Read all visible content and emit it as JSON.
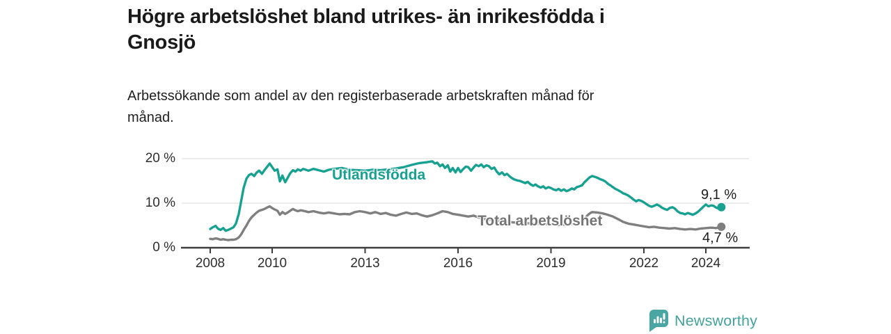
{
  "header": {
    "title_lines": [
      "Högre arbetslöshet bland utrikes- än inrikesfödda i",
      "Gnosjö"
    ],
    "subtitle_lines": [
      "Arbetssökande som andel av den registerbaserade arbetskraften månad för",
      "månad."
    ]
  },
  "footer": {
    "brand": "Newsworthy",
    "brand_color": "#44a29e",
    "icon": "bar-chart-speech-bubble"
  },
  "chart_data": {
    "type": "line",
    "title": "Högre arbetslöshet bland utrikes- än inrikesfödda i Gnosjö",
    "subtitle": "Arbetssökande som andel av den registerbaserade arbetskraften månad för månad.",
    "xlabel": "",
    "ylabel": "",
    "x_unit": "year-month",
    "ylim": [
      0,
      21
    ],
    "xlim": [
      2007.1,
      2025.4
    ],
    "grid": "horizontal",
    "legend_position": "inline-labels",
    "style": {
      "grid_color": "#d9d9d9",
      "axis_color": "#3d3d3d",
      "background": "#ffffff"
    },
    "x_ticks": [
      {
        "value": 2008,
        "label": "2008"
      },
      {
        "value": 2010,
        "label": "2010"
      },
      {
        "value": 2013,
        "label": "2013"
      },
      {
        "value": 2016,
        "label": "2016"
      },
      {
        "value": 2019,
        "label": "2019"
      },
      {
        "value": 2022,
        "label": "2022"
      },
      {
        "value": 2024,
        "label": "2024"
      }
    ],
    "y_ticks": [
      {
        "value": 0,
        "label": "0 %"
      },
      {
        "value": 10,
        "label": "10 %"
      },
      {
        "value": 20,
        "label": "20 %"
      }
    ],
    "series": [
      {
        "name": "Utlandsfödda",
        "color": "#16a191",
        "end_value": 9.1,
        "end_label": "9,1 %",
        "points": [
          [
            2008.0,
            4.2
          ],
          [
            2008.08,
            4.6
          ],
          [
            2008.17,
            4.9
          ],
          [
            2008.25,
            4.3
          ],
          [
            2008.33,
            4.0
          ],
          [
            2008.42,
            4.4
          ],
          [
            2008.5,
            3.8
          ],
          [
            2008.58,
            4.0
          ],
          [
            2008.67,
            4.3
          ],
          [
            2008.75,
            4.6
          ],
          [
            2008.83,
            5.4
          ],
          [
            2008.92,
            7.5
          ],
          [
            2009.0,
            10.5
          ],
          [
            2009.08,
            13.5
          ],
          [
            2009.17,
            15.5
          ],
          [
            2009.25,
            16.3
          ],
          [
            2009.33,
            16.6
          ],
          [
            2009.42,
            16.1
          ],
          [
            2009.5,
            16.9
          ],
          [
            2009.58,
            17.3
          ],
          [
            2009.67,
            16.6
          ],
          [
            2009.75,
            17.4
          ],
          [
            2009.83,
            18.1
          ],
          [
            2009.92,
            18.9
          ],
          [
            2010.0,
            18.1
          ],
          [
            2010.08,
            17.3
          ],
          [
            2010.17,
            17.6
          ],
          [
            2010.25,
            14.9
          ],
          [
            2010.33,
            16.2
          ],
          [
            2010.42,
            14.7
          ],
          [
            2010.5,
            15.7
          ],
          [
            2010.58,
            16.7
          ],
          [
            2010.67,
            17.4
          ],
          [
            2010.75,
            17.1
          ],
          [
            2010.83,
            17.6
          ],
          [
            2010.92,
            17.3
          ],
          [
            2011.0,
            17.7
          ],
          [
            2011.17,
            17.3
          ],
          [
            2011.33,
            17.7
          ],
          [
            2011.5,
            17.4
          ],
          [
            2011.67,
            17.1
          ],
          [
            2011.83,
            17.5
          ],
          [
            2012.0,
            17.7
          ],
          [
            2012.25,
            17.9
          ],
          [
            2012.5,
            17.5
          ],
          [
            2012.75,
            17.4
          ],
          [
            2013.0,
            17.3
          ],
          [
            2013.25,
            17.5
          ],
          [
            2013.5,
            17.4
          ],
          [
            2013.75,
            17.6
          ],
          [
            2014.0,
            17.8
          ],
          [
            2014.25,
            18.1
          ],
          [
            2014.5,
            18.6
          ],
          [
            2014.75,
            19.0
          ],
          [
            2015.0,
            19.2
          ],
          [
            2015.17,
            19.4
          ],
          [
            2015.25,
            18.9
          ],
          [
            2015.33,
            19.1
          ],
          [
            2015.42,
            18.3
          ],
          [
            2015.5,
            18.7
          ],
          [
            2015.58,
            17.9
          ],
          [
            2015.67,
            18.5
          ],
          [
            2015.75,
            17.1
          ],
          [
            2015.83,
            17.9
          ],
          [
            2015.92,
            16.9
          ],
          [
            2016.0,
            17.9
          ],
          [
            2016.08,
            17.0
          ],
          [
            2016.17,
            17.7
          ],
          [
            2016.25,
            18.2
          ],
          [
            2016.33,
            18.1
          ],
          [
            2016.42,
            17.3
          ],
          [
            2016.5,
            18.0
          ],
          [
            2016.58,
            18.6
          ],
          [
            2016.67,
            18.3
          ],
          [
            2016.75,
            18.7
          ],
          [
            2016.83,
            18.1
          ],
          [
            2016.92,
            18.5
          ],
          [
            2017.0,
            18.3
          ],
          [
            2017.08,
            17.7
          ],
          [
            2017.17,
            18.0
          ],
          [
            2017.25,
            17.1
          ],
          [
            2017.33,
            16.5
          ],
          [
            2017.42,
            16.9
          ],
          [
            2017.5,
            16.3
          ],
          [
            2017.58,
            16.6
          ],
          [
            2017.67,
            16.0
          ],
          [
            2017.75,
            15.6
          ],
          [
            2017.83,
            15.3
          ],
          [
            2017.92,
            15.1
          ],
          [
            2018.0,
            15.0
          ],
          [
            2018.17,
            14.5
          ],
          [
            2018.25,
            14.8
          ],
          [
            2018.33,
            14.3
          ],
          [
            2018.42,
            13.9
          ],
          [
            2018.5,
            14.2
          ],
          [
            2018.58,
            13.8
          ],
          [
            2018.67,
            13.5
          ],
          [
            2018.75,
            13.8
          ],
          [
            2018.83,
            13.3
          ],
          [
            2018.92,
            13.6
          ],
          [
            2019.0,
            13.4
          ],
          [
            2019.08,
            13.1
          ],
          [
            2019.17,
            12.9
          ],
          [
            2019.25,
            13.2
          ],
          [
            2019.33,
            12.8
          ],
          [
            2019.42,
            13.1
          ],
          [
            2019.5,
            12.7
          ],
          [
            2019.58,
            12.9
          ],
          [
            2019.67,
            13.3
          ],
          [
            2019.75,
            13.1
          ],
          [
            2019.83,
            13.6
          ],
          [
            2019.92,
            13.8
          ],
          [
            2020.0,
            14.0
          ],
          [
            2020.08,
            14.7
          ],
          [
            2020.17,
            15.3
          ],
          [
            2020.25,
            15.8
          ],
          [
            2020.33,
            16.1
          ],
          [
            2020.42,
            15.9
          ],
          [
            2020.5,
            15.7
          ],
          [
            2020.58,
            15.4
          ],
          [
            2020.67,
            15.2
          ],
          [
            2020.75,
            14.9
          ],
          [
            2020.83,
            14.4
          ],
          [
            2020.92,
            14.0
          ],
          [
            2021.0,
            13.6
          ],
          [
            2021.08,
            13.2
          ],
          [
            2021.17,
            12.9
          ],
          [
            2021.25,
            12.6
          ],
          [
            2021.33,
            12.2
          ],
          [
            2021.42,
            12.0
          ],
          [
            2021.5,
            11.7
          ],
          [
            2021.58,
            11.3
          ],
          [
            2021.67,
            10.8
          ],
          [
            2021.75,
            10.4
          ],
          [
            2021.83,
            10.7
          ],
          [
            2021.92,
            10.5
          ],
          [
            2022.0,
            10.2
          ],
          [
            2022.08,
            9.8
          ],
          [
            2022.17,
            9.4
          ],
          [
            2022.25,
            9.2
          ],
          [
            2022.33,
            9.4
          ],
          [
            2022.42,
            9.7
          ],
          [
            2022.5,
            9.4
          ],
          [
            2022.58,
            9.0
          ],
          [
            2022.67,
            8.7
          ],
          [
            2022.75,
            8.5
          ],
          [
            2022.83,
            8.9
          ],
          [
            2022.92,
            9.1
          ],
          [
            2023.0,
            8.8
          ],
          [
            2023.08,
            8.2
          ],
          [
            2023.17,
            7.8
          ],
          [
            2023.25,
            7.7
          ],
          [
            2023.33,
            7.5
          ],
          [
            2023.42,
            7.8
          ],
          [
            2023.5,
            7.6
          ],
          [
            2023.58,
            7.4
          ],
          [
            2023.67,
            7.7
          ],
          [
            2023.75,
            8.1
          ],
          [
            2023.83,
            8.6
          ],
          [
            2023.92,
            9.2
          ],
          [
            2024.0,
            9.7
          ],
          [
            2024.08,
            9.3
          ],
          [
            2024.17,
            9.5
          ],
          [
            2024.25,
            9.4
          ],
          [
            2024.33,
            9.0
          ],
          [
            2024.42,
            8.8
          ],
          [
            2024.5,
            9.1
          ]
        ]
      },
      {
        "name": "Total arbetslöshet",
        "color": "#7f7f7f",
        "end_value": 4.7,
        "end_label": "4,7 %",
        "points": [
          [
            2008.0,
            2.0
          ],
          [
            2008.08,
            1.9
          ],
          [
            2008.17,
            2.1
          ],
          [
            2008.25,
            2.0
          ],
          [
            2008.33,
            1.8
          ],
          [
            2008.42,
            1.9
          ],
          [
            2008.5,
            1.8
          ],
          [
            2008.58,
            1.7
          ],
          [
            2008.67,
            1.8
          ],
          [
            2008.75,
            1.8
          ],
          [
            2008.83,
            1.9
          ],
          [
            2008.92,
            2.3
          ],
          [
            2009.0,
            3.0
          ],
          [
            2009.08,
            4.0
          ],
          [
            2009.17,
            5.0
          ],
          [
            2009.25,
            6.0
          ],
          [
            2009.33,
            6.8
          ],
          [
            2009.42,
            7.4
          ],
          [
            2009.5,
            7.9
          ],
          [
            2009.58,
            8.3
          ],
          [
            2009.67,
            8.5
          ],
          [
            2009.75,
            8.7
          ],
          [
            2009.83,
            9.0
          ],
          [
            2009.92,
            9.3
          ],
          [
            2010.0,
            8.9
          ],
          [
            2010.08,
            8.6
          ],
          [
            2010.17,
            8.3
          ],
          [
            2010.25,
            7.4
          ],
          [
            2010.33,
            8.0
          ],
          [
            2010.42,
            7.6
          ],
          [
            2010.5,
            7.9
          ],
          [
            2010.58,
            8.3
          ],
          [
            2010.67,
            8.7
          ],
          [
            2010.75,
            8.4
          ],
          [
            2010.83,
            8.2
          ],
          [
            2010.92,
            8.4
          ],
          [
            2011.0,
            8.3
          ],
          [
            2011.17,
            8.0
          ],
          [
            2011.33,
            8.2
          ],
          [
            2011.5,
            7.9
          ],
          [
            2011.67,
            7.7
          ],
          [
            2011.83,
            7.9
          ],
          [
            2012.0,
            7.7
          ],
          [
            2012.17,
            7.5
          ],
          [
            2012.33,
            7.6
          ],
          [
            2012.5,
            7.5
          ],
          [
            2012.67,
            8.0
          ],
          [
            2012.83,
            8.2
          ],
          [
            2013.0,
            8.0
          ],
          [
            2013.17,
            7.7
          ],
          [
            2013.33,
            8.0
          ],
          [
            2013.5,
            7.6
          ],
          [
            2013.67,
            7.8
          ],
          [
            2013.83,
            7.4
          ],
          [
            2014.0,
            7.2
          ],
          [
            2014.17,
            7.6
          ],
          [
            2014.33,
            7.9
          ],
          [
            2014.5,
            7.6
          ],
          [
            2014.67,
            7.7
          ],
          [
            2014.83,
            7.3
          ],
          [
            2015.0,
            7.0
          ],
          [
            2015.17,
            7.3
          ],
          [
            2015.33,
            7.7
          ],
          [
            2015.5,
            8.2
          ],
          [
            2015.67,
            8.0
          ],
          [
            2015.83,
            7.6
          ],
          [
            2016.0,
            7.4
          ],
          [
            2016.17,
            7.2
          ],
          [
            2016.33,
            7.0
          ],
          [
            2016.5,
            7.2
          ],
          [
            2016.67,
            6.8
          ],
          [
            2016.83,
            6.5
          ],
          [
            2017.0,
            6.3
          ],
          [
            2017.25,
            6.1
          ],
          [
            2017.5,
            5.9
          ],
          [
            2017.75,
            5.7
          ],
          [
            2018.0,
            5.6
          ],
          [
            2018.25,
            5.5
          ],
          [
            2018.5,
            5.4
          ],
          [
            2018.75,
            5.3
          ],
          [
            2019.0,
            5.2
          ],
          [
            2019.25,
            5.1
          ],
          [
            2019.5,
            5.2
          ],
          [
            2019.75,
            5.4
          ],
          [
            2020.0,
            5.8
          ],
          [
            2020.08,
            6.4
          ],
          [
            2020.17,
            7.2
          ],
          [
            2020.25,
            7.7
          ],
          [
            2020.33,
            8.0
          ],
          [
            2020.5,
            7.9
          ],
          [
            2020.67,
            7.7
          ],
          [
            2020.83,
            7.4
          ],
          [
            2021.0,
            7.0
          ],
          [
            2021.17,
            6.4
          ],
          [
            2021.33,
            5.8
          ],
          [
            2021.5,
            5.4
          ],
          [
            2021.67,
            5.2
          ],
          [
            2021.83,
            5.0
          ],
          [
            2022.0,
            4.8
          ],
          [
            2022.17,
            4.6
          ],
          [
            2022.33,
            4.7
          ],
          [
            2022.5,
            4.5
          ],
          [
            2022.67,
            4.4
          ],
          [
            2022.83,
            4.3
          ],
          [
            2023.0,
            4.4
          ],
          [
            2023.17,
            4.2
          ],
          [
            2023.33,
            4.1
          ],
          [
            2023.5,
            4.2
          ],
          [
            2023.67,
            4.1
          ],
          [
            2023.83,
            4.3
          ],
          [
            2024.0,
            4.4
          ],
          [
            2024.17,
            4.5
          ],
          [
            2024.33,
            4.4
          ],
          [
            2024.5,
            4.7
          ]
        ]
      }
    ]
  }
}
